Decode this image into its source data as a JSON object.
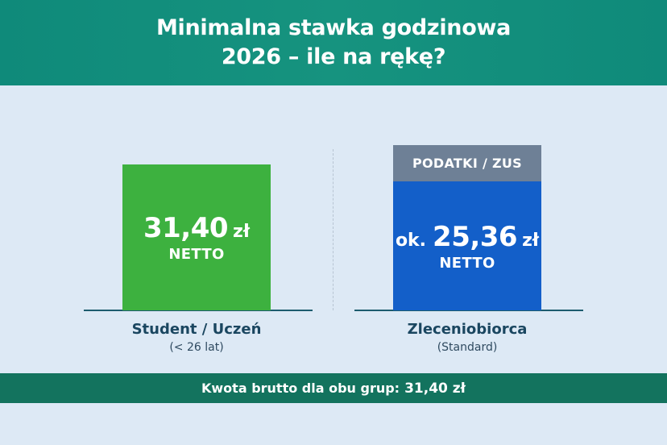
{
  "header": {
    "title_line1": "Minimalna stawka godzinowa",
    "title_line2": "2026 – ile na rękę?"
  },
  "left": {
    "amount": "31,40",
    "unit": "zł",
    "netto_label": "NETTO",
    "group_label": "Student / Uczeń",
    "group_sub": "(< 26 lat)"
  },
  "right": {
    "tax_label": "PODATKI / ZUS",
    "prefix": "ok.",
    "amount": "25,36",
    "unit": "zł",
    "netto_label": "NETTO",
    "group_label": "Zleceniobiorca",
    "group_sub": "(Standard)"
  },
  "footer": {
    "text": "Kwota brutto dla obu grup:",
    "value": "31,40 zł"
  },
  "colors": {
    "header": "#0f8a7a",
    "green_bar": "#3db13f",
    "blue_bar": "#135fc9",
    "tax_bar": "#6e8096",
    "footer": "#13735e",
    "background": "#dde9f5"
  }
}
